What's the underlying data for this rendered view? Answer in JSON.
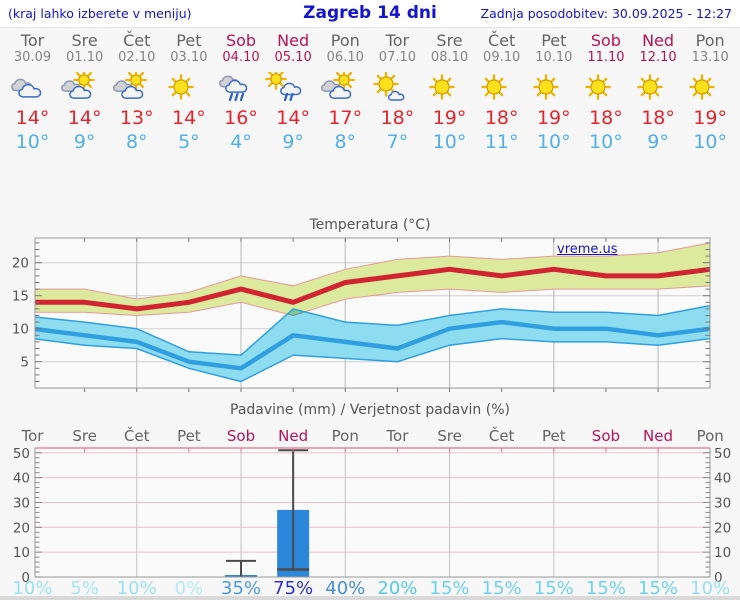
{
  "header": {
    "note": "(kraj lahko izberete v meniju)",
    "title": "Zagreb 14 dni",
    "updated": "Zadnja posodobitev: 30.09.2025 - 12:27"
  },
  "watermark": "vreme.us",
  "days": [
    {
      "name": "Tor",
      "date": "30.09",
      "weekend": false,
      "icon": "cloudy"
    },
    {
      "name": "Sre",
      "date": "01.10",
      "weekend": false,
      "icon": "sun-clouds"
    },
    {
      "name": "Čet",
      "date": "02.10",
      "weekend": false,
      "icon": "sun-clouds"
    },
    {
      "name": "Pet",
      "date": "03.10",
      "weekend": false,
      "icon": "sunny"
    },
    {
      "name": "Sob",
      "date": "04.10",
      "weekend": true,
      "icon": "rain"
    },
    {
      "name": "Ned",
      "date": "05.10",
      "weekend": true,
      "icon": "sun-rain"
    },
    {
      "name": "Pon",
      "date": "06.10",
      "weekend": false,
      "icon": "sun-clouds"
    },
    {
      "name": "Tor",
      "date": "07.10",
      "weekend": false,
      "icon": "sun-cloud"
    },
    {
      "name": "Sre",
      "date": "08.10",
      "weekend": false,
      "icon": "sunny"
    },
    {
      "name": "Čet",
      "date": "09.10",
      "weekend": false,
      "icon": "sunny"
    },
    {
      "name": "Pet",
      "date": "10.10",
      "weekend": false,
      "icon": "sunny"
    },
    {
      "name": "Sob",
      "date": "11.10",
      "weekend": true,
      "icon": "sunny"
    },
    {
      "name": "Ned",
      "date": "12.10",
      "weekend": true,
      "icon": "sunny"
    },
    {
      "name": "Pon",
      "date": "13.10",
      "weekend": false,
      "icon": "sunny"
    }
  ],
  "chart_data": [
    {
      "type": "line",
      "title": "Temperatura (°C)",
      "categories": [
        "30.09",
        "01.10",
        "02.10",
        "03.10",
        "04.10",
        "05.10",
        "06.10",
        "07.10",
        "08.10",
        "09.10",
        "10.10",
        "11.10",
        "12.10",
        "13.10"
      ],
      "yticks": [
        5,
        10,
        15,
        20
      ],
      "ylim": [
        1,
        23.7
      ],
      "grid": true,
      "legend": "none",
      "series": [
        {
          "name": "max temperature",
          "color": "#d22430",
          "values": [
            14,
            14,
            13,
            14,
            16,
            14,
            17,
            18,
            19,
            18,
            19,
            18,
            18,
            19
          ]
        },
        {
          "name": "max range high",
          "color": "#dcea9e",
          "values": [
            16,
            16,
            14.5,
            15.5,
            18,
            16.5,
            19,
            20.5,
            21,
            20.5,
            21,
            21,
            21.5,
            23
          ]
        },
        {
          "name": "max range low",
          "color": "#dcea9e",
          "values": [
            12.5,
            12.5,
            12,
            12.5,
            14,
            12,
            14.5,
            15.5,
            16,
            15.5,
            16,
            16,
            16,
            16.5
          ]
        },
        {
          "name": "min temperature",
          "color": "#2f9fe2",
          "values": [
            10,
            9,
            8,
            5,
            4,
            9,
            8,
            7,
            10,
            11,
            10,
            10,
            9,
            10
          ]
        },
        {
          "name": "min range high",
          "color": "#8edcf0",
          "values": [
            11.8,
            11,
            10,
            6.5,
            6,
            13,
            11,
            10.5,
            12,
            13,
            12.5,
            12.5,
            12,
            13.5
          ]
        },
        {
          "name": "min range low",
          "color": "#8edcf0",
          "values": [
            8.5,
            7.5,
            7,
            4,
            2,
            6,
            5.5,
            5,
            7.5,
            8.5,
            8,
            8,
            7.5,
            8.5
          ]
        }
      ]
    },
    {
      "type": "bar",
      "title": "Padavine (mm) / Verjetnost padavin (%)",
      "categories": [
        "Tor",
        "Sre",
        "Čet",
        "Pet",
        "Sob",
        "Ned",
        "Pon",
        "Tor",
        "Sre",
        "Čet",
        "Pet",
        "Sob",
        "Ned",
        "Pon"
      ],
      "values_mm": [
        0,
        0,
        0,
        0,
        0.8,
        27,
        0,
        0,
        0,
        0,
        0,
        0,
        0,
        0
      ],
      "whisker_high_mm": [
        null,
        null,
        null,
        null,
        6.5,
        51,
        null,
        null,
        null,
        null,
        null,
        null,
        null,
        null
      ],
      "whisker_low_mm": [
        null,
        null,
        null,
        null,
        0,
        3,
        null,
        null,
        null,
        null,
        null,
        null,
        null,
        null
      ],
      "probability_pct": [
        10,
        5,
        10,
        0,
        35,
        75,
        40,
        20,
        15,
        15,
        15,
        15,
        15,
        10
      ],
      "yticks": [
        0,
        10,
        20,
        30,
        40,
        50
      ],
      "ylim": [
        0,
        52
      ],
      "legend": "none"
    }
  ],
  "colors": {
    "header_blue": "#1414cc",
    "weekend": "#b81355",
    "weekday": "#646464",
    "date_gray": "#848484",
    "tmax_red": "#e0252f",
    "tmin_blue": "#50b0eb",
    "line_red": "#d22430",
    "band_yellow": "#dcea9e",
    "band_yellow_edge": "#e89898",
    "line_blue": "#2f9fe2",
    "band_cyan": "#8edcf0",
    "bar_blue": "#2b87da",
    "whisker": "#4a4a4a",
    "grid_gray": "#b8b8b8",
    "grid_light": "#cfcfcf",
    "grid_pink": "#f2bdc9",
    "axis_pink": "#e2718f",
    "axis_gray": "#999999",
    "tick_gray": "#777777",
    "label_gray": "#555555",
    "prob_scale": {
      "0": "#b6e9f8",
      "5": "#a9e4f6",
      "10": "#9bdff4",
      "15": "#6fd1f1",
      "20": "#55c8ef",
      "35": "#4a9ae8",
      "40": "#478ee2",
      "75": "#2a31d0"
    }
  }
}
